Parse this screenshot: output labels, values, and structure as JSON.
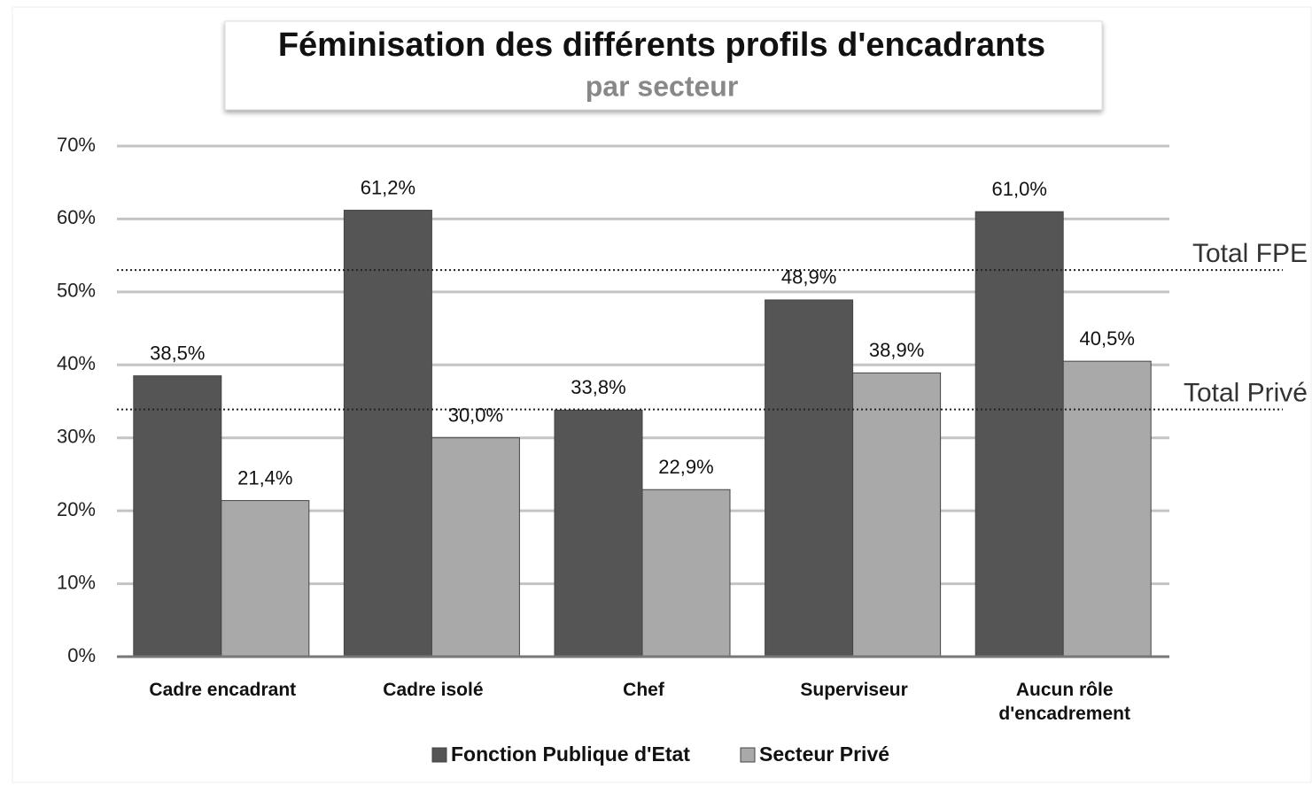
{
  "chart_data": {
    "type": "bar",
    "title": "Féminisation des différents profils d'encadrants",
    "subtitle": "par secteur",
    "categories": [
      "Cadre encadrant",
      "Cadre isolé",
      "Chef",
      "Superviseur",
      "Aucun rôle d'encadrement"
    ],
    "series": [
      {
        "name": "Fonction Publique d'Etat",
        "color": "#555555",
        "values": [
          38.5,
          61.2,
          33.8,
          48.9,
          61.0
        ],
        "value_labels": [
          "38,5%",
          "61,2%",
          "33,8%",
          "48,9%",
          "61,0%"
        ]
      },
      {
        "name": "Secteur Privé",
        "color": "#a9a9a9",
        "values": [
          21.4,
          30.0,
          22.9,
          38.9,
          40.5
        ],
        "value_labels": [
          "21,4%",
          "30,0%",
          "22,9%",
          "38,9%",
          "40,5%"
        ]
      }
    ],
    "reference_lines": [
      {
        "label": "Total FPE",
        "value": 53.0
      },
      {
        "label": "Total Privé",
        "value": 33.9
      }
    ],
    "ylim": [
      0,
      70
    ],
    "yticks": [
      {
        "value": 0,
        "label": "0%"
      },
      {
        "value": 10,
        "label": "10%"
      },
      {
        "value": 20,
        "label": "20%"
      },
      {
        "value": 30,
        "label": "30%"
      },
      {
        "value": 40,
        "label": "40%"
      },
      {
        "value": 50,
        "label": "50%"
      },
      {
        "value": 60,
        "label": "60%"
      },
      {
        "value": 70,
        "label": "70%"
      }
    ],
    "grid": true,
    "legend": "bottom"
  }
}
